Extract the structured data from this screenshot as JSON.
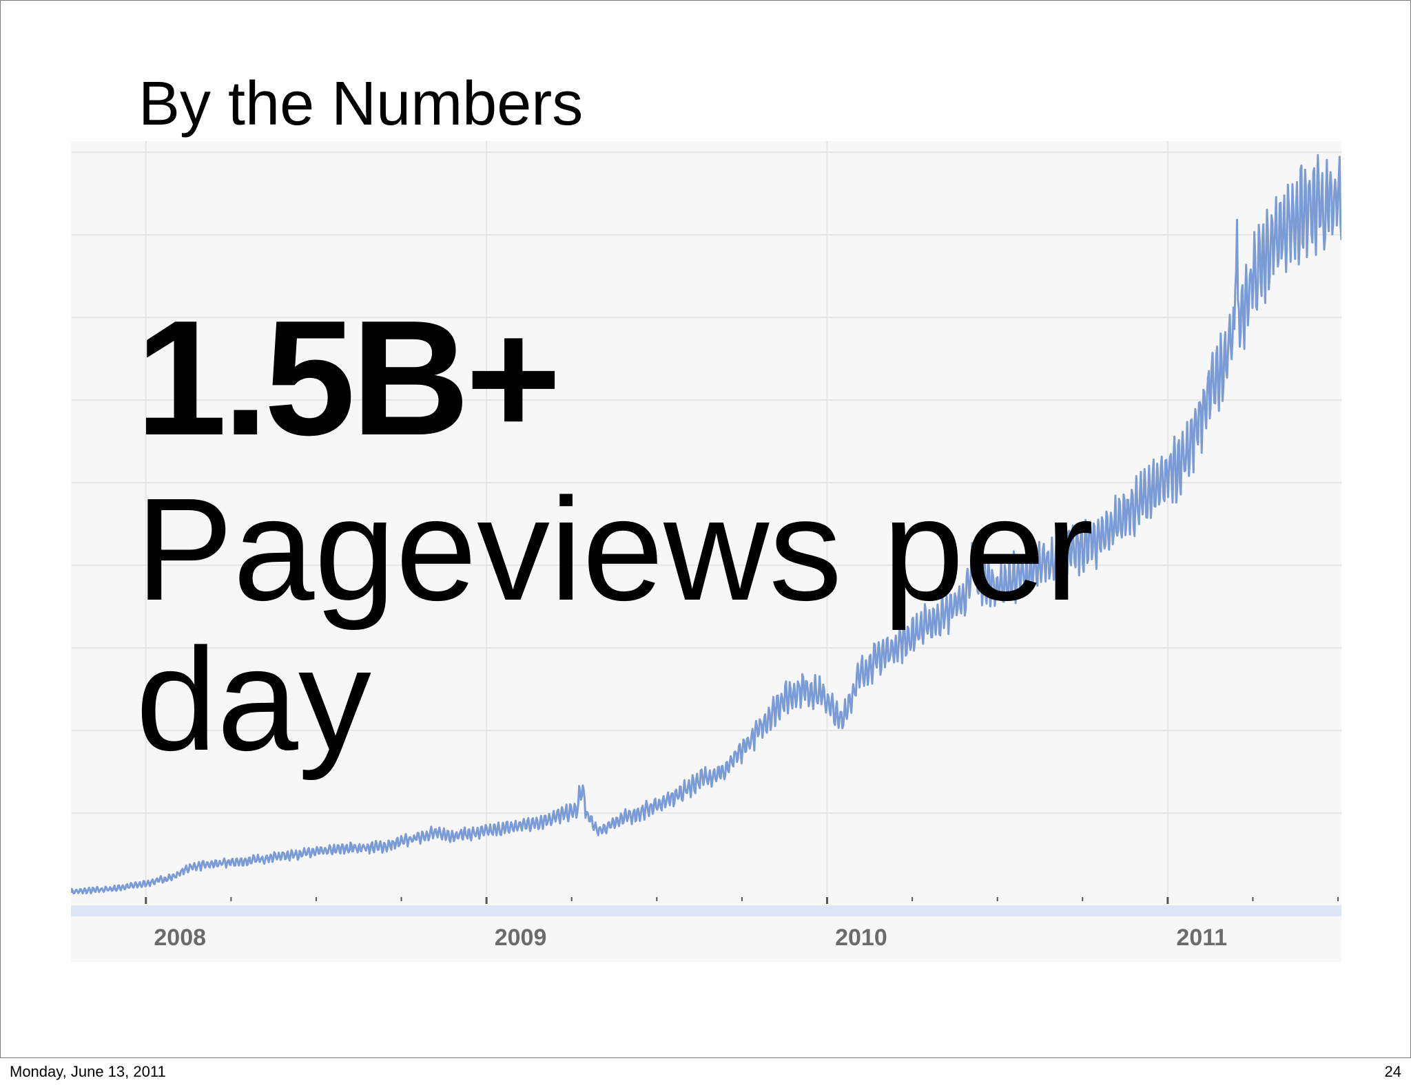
{
  "slide": {
    "title": "By the Numbers",
    "headline": "1.5B+",
    "caption": "Pageviews per day"
  },
  "footer": {
    "date": "Monday, June 13, 2011",
    "page_number": "24"
  },
  "colors": {
    "line": "#7a9bd6",
    "panel_background": "#f7f7f7",
    "axis_band": "#dde6f4",
    "gridline": "#e6e6e6"
  },
  "chart_data": {
    "type": "line",
    "title": "",
    "xlabel": "",
    "ylabel": "",
    "x_tick_labels": [
      "2008",
      "2009",
      "2010",
      "2011"
    ],
    "y_axis_labels_shown": false,
    "grid": true,
    "legend": "none",
    "xlim": [
      2007.78,
      2011.51
    ],
    "ylim": [
      0,
      100
    ],
    "y_units": "relative level (0 = baseline, 100 = chart top; no printed scale)",
    "series": [
      {
        "values_x": [
          2007.78,
          2007.9,
          2008.0,
          2008.08,
          2008.13,
          2008.2,
          2008.3,
          2008.4,
          2008.5,
          2008.6,
          2008.7,
          2008.78,
          2008.84,
          2008.9,
          2008.97,
          2009.05,
          2009.15,
          2009.22,
          2009.28,
          2009.33,
          2009.38,
          2009.45,
          2009.55,
          2009.63,
          2009.7,
          2009.8,
          2009.87,
          2009.93,
          2009.99,
          2010.04,
          2010.1,
          2010.15,
          2010.2,
          2010.28,
          2010.35,
          2010.4,
          2010.43,
          2010.5,
          2010.6,
          2010.7,
          2010.8,
          2010.9,
          2010.97,
          2011.03,
          2011.08,
          2011.12,
          2011.17,
          2011.2,
          2011.25,
          2011.3,
          2011.35,
          2011.4,
          2011.45,
          2011.51
        ],
        "values_y": [
          0.5,
          0.9,
          1.6,
          2.5,
          3.8,
          4.2,
          4.6,
          5.3,
          5.8,
          6.3,
          6.5,
          7.5,
          8.3,
          8.0,
          8.3,
          8.9,
          9.7,
          10.7,
          11.6,
          8.4,
          9.9,
          11.0,
          13.0,
          15.5,
          16.5,
          22.0,
          26.0,
          27.5,
          26.5,
          23.0,
          29.5,
          31.5,
          33.0,
          35.5,
          37.5,
          39.5,
          42.0,
          41.0,
          43.0,
          45.0,
          47.5,
          51.5,
          54.0,
          57.0,
          61.0,
          66.5,
          70.5,
          76.0,
          81.5,
          86.0,
          89.0,
          90.5,
          91.0,
          92.0
        ]
      }
    ]
  }
}
